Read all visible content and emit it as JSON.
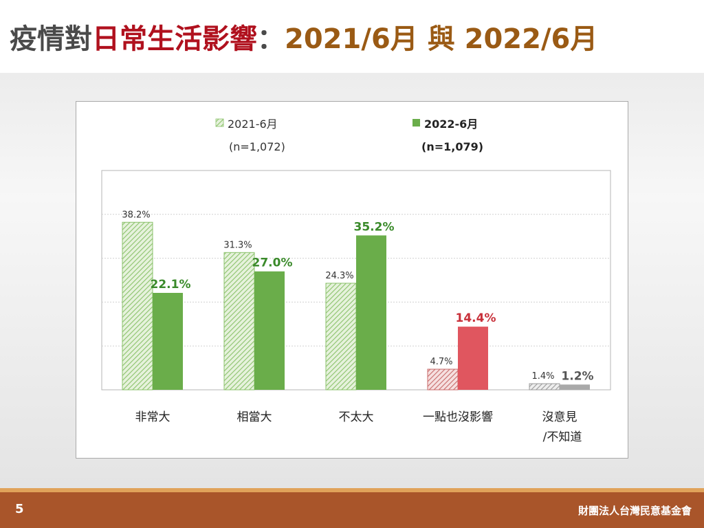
{
  "title": {
    "part1": "疫情對",
    "part2": "日常生活影響",
    "part3": "：",
    "part4": "2021/6月 與 2022/6月"
  },
  "footer": {
    "page_number": "5",
    "organization": "財團法人台灣民意基金會"
  },
  "colors": {
    "title_dark": "#4a4a4a",
    "title_red": "#b0111e",
    "title_brown": "#9a5a14",
    "green_solid": "#6aad4a",
    "green_hatch": "#8bc26b",
    "red_solid": "#e0565f",
    "red_hatch": "#c86a6a",
    "gray_solid": "#a9a9a9",
    "gray_hatch": "#9a9a9a",
    "label_green": "#3a8a2a",
    "label_red": "#c8303a",
    "label_gray": "#555555",
    "footer_bg": "#a9552a",
    "footer_line": "#e0a25a"
  },
  "chart_data": {
    "type": "bar",
    "categories": [
      "非常大",
      "相當大",
      "不太大",
      "一點也沒影響",
      "沒意見\n/不知道"
    ],
    "series": [
      {
        "name": "2021-6月",
        "n": "(n=1,072)",
        "values": [
          38.2,
          31.3,
          24.3,
          4.7,
          1.4
        ],
        "labels": [
          "38.2%",
          "31.3%",
          "24.3%",
          "4.7%",
          "1.4%"
        ]
      },
      {
        "name": "2022-6月",
        "n": "(n=1,079)",
        "values": [
          22.1,
          27.0,
          35.2,
          14.4,
          1.2
        ],
        "labels": [
          "22.1%",
          "27.0%",
          "35.2%",
          "14.4%",
          "1.2%"
        ]
      }
    ],
    "ylim": [
      0,
      50
    ],
    "grid": true,
    "legend_position": "top-left"
  }
}
